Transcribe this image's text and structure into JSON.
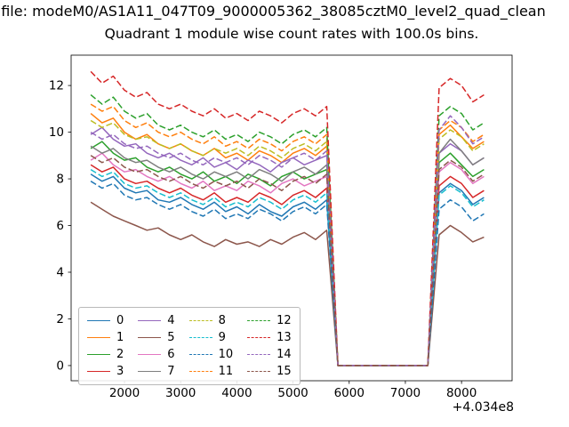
{
  "colors": {
    "background": "#ffffff",
    "spine": "#000000",
    "tick_label": "#000000"
  },
  "chart_data": {
    "type": "line",
    "suptitle": "n file: modeM0/AS1A11_047T09_9000005362_38085cztM0_level2_quad_clean",
    "title": "Quadrant 1 module wise count rates with 100.0s bins.",
    "x_offset_label": "+4.034e8",
    "xlabel": "",
    "ylabel": "",
    "grid": false,
    "legend_position": "lower left",
    "legend_columns": 4,
    "xlim": [
      1050,
      8900
    ],
    "ylim": [
      -0.65,
      13.3
    ],
    "x_ticks": [
      2000,
      3000,
      4000,
      5000,
      6000,
      7000,
      8000
    ],
    "y_ticks": [
      0,
      2,
      4,
      6,
      8,
      10,
      12
    ],
    "x": [
      1400,
      1600,
      1800,
      2000,
      2200,
      2400,
      2600,
      2800,
      3000,
      3200,
      3400,
      3600,
      3800,
      4000,
      4200,
      4400,
      4600,
      4800,
      5000,
      5200,
      5400,
      5600,
      5800,
      6000,
      6200,
      6400,
      6600,
      6800,
      7000,
      7200,
      7400,
      7600,
      7800,
      8000,
      8200,
      8400
    ],
    "series": [
      {
        "name": "0",
        "color": "#1f77b4",
        "dash": false,
        "values": [
          8.2,
          7.9,
          8.1,
          7.6,
          7.4,
          7.5,
          7.1,
          7.0,
          7.2,
          6.9,
          6.7,
          7.0,
          6.6,
          6.8,
          6.5,
          6.9,
          6.6,
          6.4,
          6.8,
          7.0,
          6.7,
          7.1,
          0,
          0,
          0,
          0,
          0,
          0,
          0,
          0,
          0,
          7.4,
          7.8,
          7.5,
          6.9,
          7.2
        ]
      },
      {
        "name": "1",
        "color": "#ff7f0e",
        "dash": false,
        "values": [
          10.8,
          10.4,
          10.6,
          10.0,
          9.7,
          9.9,
          9.5,
          9.3,
          9.5,
          9.2,
          9.0,
          9.3,
          8.9,
          9.1,
          8.8,
          9.2,
          9.0,
          8.7,
          9.1,
          9.3,
          9.0,
          9.4,
          0,
          0,
          0,
          0,
          0,
          0,
          0,
          0,
          0,
          9.9,
          10.3,
          9.8,
          9.3,
          9.6
        ]
      },
      {
        "name": "2",
        "color": "#2ca02c",
        "dash": false,
        "values": [
          9.3,
          9.6,
          9.1,
          8.8,
          8.9,
          8.5,
          8.3,
          8.5,
          8.2,
          8.0,
          8.3,
          7.9,
          8.1,
          7.8,
          8.2,
          8.0,
          7.7,
          8.1,
          8.3,
          8.0,
          8.2,
          8.4,
          0,
          0,
          0,
          0,
          0,
          0,
          0,
          0,
          0,
          8.7,
          9.1,
          8.6,
          8.1,
          8.4
        ]
      },
      {
        "name": "3",
        "color": "#d62728",
        "dash": false,
        "values": [
          8.6,
          8.3,
          8.5,
          8.0,
          7.8,
          7.9,
          7.6,
          7.4,
          7.6,
          7.3,
          7.1,
          7.4,
          7.0,
          7.2,
          7.0,
          7.4,
          7.2,
          6.9,
          7.3,
          7.5,
          7.2,
          7.6,
          0,
          0,
          0,
          0,
          0,
          0,
          0,
          0,
          0,
          7.7,
          8.1,
          7.8,
          7.2,
          7.5
        ]
      },
      {
        "name": "4",
        "color": "#9467bd",
        "dash": false,
        "values": [
          9.9,
          10.2,
          9.7,
          9.4,
          9.5,
          9.1,
          8.9,
          9.1,
          8.8,
          8.6,
          8.9,
          8.5,
          8.7,
          8.4,
          8.8,
          8.6,
          8.3,
          8.7,
          8.9,
          8.6,
          8.8,
          9.0,
          0,
          0,
          0,
          0,
          0,
          0,
          0,
          0,
          0,
          9.1,
          9.5,
          9.2,
          8.6,
          8.9
        ]
      },
      {
        "name": "5",
        "color": "#8c564b",
        "dash": false,
        "values": [
          7.0,
          6.7,
          6.4,
          6.2,
          6.0,
          5.8,
          5.9,
          5.6,
          5.4,
          5.6,
          5.3,
          5.1,
          5.4,
          5.2,
          5.3,
          5.1,
          5.4,
          5.2,
          5.5,
          5.7,
          5.4,
          5.8,
          0,
          0,
          0,
          0,
          0,
          0,
          0,
          0,
          0,
          5.6,
          6.0,
          5.7,
          5.3,
          5.5
        ]
      },
      {
        "name": "6",
        "color": "#e377c2",
        "dash": false,
        "values": [
          8.8,
          9.1,
          8.6,
          8.3,
          8.4,
          8.1,
          7.9,
          8.1,
          7.8,
          7.6,
          7.9,
          7.5,
          7.7,
          7.5,
          7.9,
          7.7,
          7.4,
          7.8,
          8.0,
          7.7,
          7.9,
          8.1,
          0,
          0,
          0,
          0,
          0,
          0,
          0,
          0,
          0,
          8.3,
          8.7,
          8.4,
          7.8,
          8.1
        ]
      },
      {
        "name": "7",
        "color": "#7f7f7f",
        "dash": false,
        "values": [
          9.4,
          9.1,
          9.3,
          8.9,
          8.7,
          8.8,
          8.5,
          8.3,
          8.5,
          8.2,
          8.0,
          8.3,
          8.1,
          8.3,
          8.0,
          8.4,
          8.2,
          7.9,
          8.3,
          8.5,
          8.2,
          8.6,
          0,
          0,
          0,
          0,
          0,
          0,
          0,
          0,
          0,
          9.1,
          9.7,
          9.2,
          8.6,
          8.9
        ]
      },
      {
        "name": "8",
        "color": "#bcbd22",
        "dash": true,
        "values": [
          10.5,
          10.2,
          10.4,
          9.9,
          9.7,
          9.8,
          9.5,
          9.3,
          9.5,
          9.2,
          9.0,
          9.3,
          9.1,
          9.3,
          9.0,
          9.4,
          9.2,
          8.9,
          9.3,
          9.5,
          9.2,
          9.6,
          0,
          0,
          0,
          0,
          0,
          0,
          0,
          0,
          0,
          9.7,
          10.1,
          9.8,
          9.2,
          9.5
        ]
      },
      {
        "name": "9",
        "color": "#17becf",
        "dash": true,
        "values": [
          8.4,
          8.1,
          8.3,
          7.8,
          7.6,
          7.7,
          7.4,
          7.2,
          7.4,
          7.1,
          6.9,
          7.2,
          6.8,
          7.0,
          6.8,
          7.2,
          7.0,
          6.7,
          7.1,
          7.3,
          7.0,
          7.4,
          0,
          0,
          0,
          0,
          0,
          0,
          0,
          0,
          0,
          7.3,
          7.7,
          7.4,
          6.8,
          7.1
        ]
      },
      {
        "name": "10",
        "color": "#1f77b4",
        "dash": true,
        "values": [
          7.9,
          7.6,
          7.8,
          7.3,
          7.1,
          7.2,
          6.9,
          6.7,
          6.9,
          6.6,
          6.4,
          6.7,
          6.3,
          6.5,
          6.3,
          6.7,
          6.5,
          6.2,
          6.6,
          6.8,
          6.5,
          6.9,
          0,
          0,
          0,
          0,
          0,
          0,
          0,
          0,
          0,
          6.7,
          7.1,
          6.8,
          6.2,
          6.5
        ]
      },
      {
        "name": "11",
        "color": "#ff7f0e",
        "dash": true,
        "values": [
          11.2,
          10.9,
          11.1,
          10.5,
          10.2,
          10.4,
          10.0,
          9.8,
          10.0,
          9.7,
          9.5,
          9.8,
          9.4,
          9.6,
          9.3,
          9.7,
          9.5,
          9.2,
          9.6,
          9.8,
          9.5,
          9.9,
          0,
          0,
          0,
          0,
          0,
          0,
          0,
          0,
          0,
          10.1,
          10.5,
          10.2,
          9.6,
          9.9
        ]
      },
      {
        "name": "12",
        "color": "#2ca02c",
        "dash": true,
        "values": [
          11.6,
          11.2,
          11.5,
          10.9,
          10.6,
          10.8,
          10.3,
          10.1,
          10.3,
          10.0,
          9.8,
          10.1,
          9.7,
          9.9,
          9.6,
          10.0,
          9.8,
          9.5,
          9.9,
          10.1,
          9.8,
          10.2,
          0,
          0,
          0,
          0,
          0,
          0,
          0,
          0,
          0,
          10.7,
          11.1,
          10.8,
          10.1,
          10.4
        ]
      },
      {
        "name": "13",
        "color": "#d62728",
        "dash": true,
        "values": [
          12.6,
          12.1,
          12.4,
          11.8,
          11.5,
          11.7,
          11.2,
          11.0,
          11.2,
          10.9,
          10.7,
          11.0,
          10.6,
          10.8,
          10.5,
          10.9,
          10.7,
          10.4,
          10.8,
          11.0,
          10.7,
          11.1,
          0,
          0,
          0,
          0,
          0,
          0,
          0,
          0,
          0,
          11.9,
          12.3,
          12.0,
          11.3,
          11.6
        ]
      },
      {
        "name": "14",
        "color": "#9467bd",
        "dash": true,
        "values": [
          10.0,
          9.7,
          9.9,
          9.5,
          9.3,
          9.4,
          9.1,
          8.9,
          9.1,
          8.8,
          8.6,
          8.9,
          8.7,
          8.9,
          8.6,
          9.0,
          8.8,
          8.5,
          8.9,
          9.1,
          8.8,
          9.2,
          0,
          0,
          0,
          0,
          0,
          0,
          0,
          0,
          0,
          10.1,
          10.7,
          10.2,
          9.5,
          9.8
        ]
      },
      {
        "name": "15",
        "color": "#8c564b",
        "dash": true,
        "values": [
          9.0,
          8.7,
          8.9,
          8.5,
          8.3,
          8.4,
          8.1,
          7.9,
          8.1,
          7.8,
          7.6,
          7.9,
          7.7,
          7.9,
          7.6,
          8.0,
          7.8,
          7.5,
          7.9,
          8.1,
          7.8,
          8.2,
          0,
          0,
          0,
          0,
          0,
          0,
          0,
          0,
          0,
          8.4,
          8.8,
          8.5,
          7.9,
          8.2
        ]
      }
    ]
  }
}
